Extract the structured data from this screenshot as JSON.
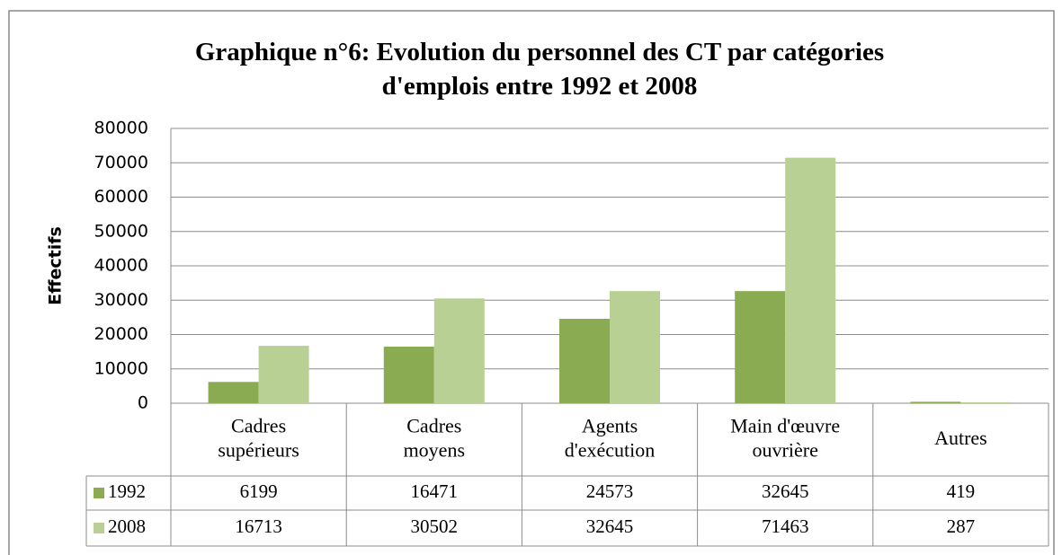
{
  "chart_data": {
    "type": "bar",
    "title": "Graphique n°6: Evolution du personnel des CT par catégories d'emplois entre 1992 et 2008",
    "y_label": "Effectifs",
    "categories": [
      "Cadres supérieurs",
      "Cadres moyens",
      "Agents d'exécution",
      "Main d'œuvre ouvrière",
      "Autres"
    ],
    "series": [
      {
        "name": "1992",
        "color": "#8bab52",
        "values": [
          6199,
          16471,
          24573,
          32645,
          419
        ]
      },
      {
        "name": "2008",
        "color": "#b9d094",
        "values": [
          16713,
          30502,
          32645,
          71463,
          287
        ]
      }
    ],
    "ylim": [
      0,
      80000
    ],
    "yticks": [
      0,
      10000,
      20000,
      30000,
      40000,
      50000,
      60000,
      70000,
      80000
    ],
    "grid": true,
    "data_table": true
  }
}
